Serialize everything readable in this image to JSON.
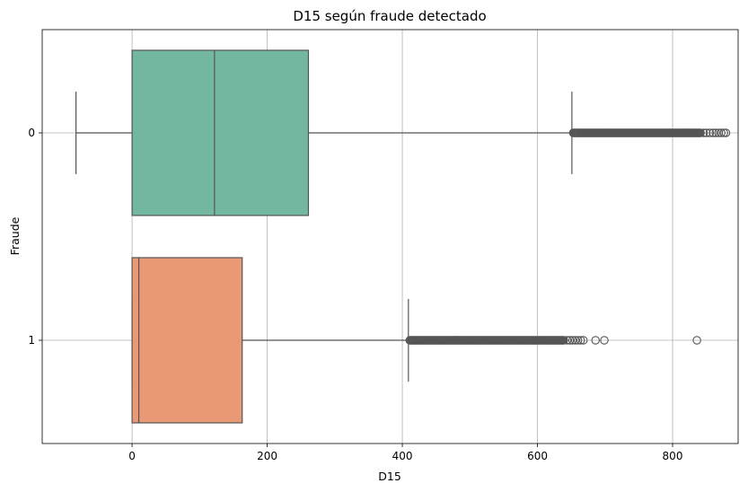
{
  "chart_data": {
    "type": "boxplot",
    "orientation": "horizontal",
    "title": "D15 según fraude detectado",
    "xlabel": "D15",
    "ylabel": "Fraude",
    "xlim": [
      -133,
      897
    ],
    "xticks": [
      0,
      200,
      400,
      600,
      800
    ],
    "grid": true,
    "categories": [
      "0",
      "1"
    ],
    "series": [
      {
        "category": "0",
        "color": "#73b7a1",
        "whisker_low": -83,
        "q1": 0,
        "median": 122,
        "q3": 261,
        "whisker_high": 651,
        "outlier_range": [
          651,
          842
        ],
        "outliers_extra": [
          846,
          850,
          855,
          860,
          864,
          868,
          872,
          876,
          879
        ]
      },
      {
        "category": "1",
        "color": "#ea9977",
        "whisker_low": 0,
        "q1": 0,
        "median": 10,
        "q3": 163,
        "whisker_high": 409,
        "outlier_range": [
          409,
          640
        ],
        "outliers_extra": [
          644,
          648,
          652,
          656,
          660,
          664,
          668,
          686,
          699,
          836
        ]
      }
    ]
  }
}
